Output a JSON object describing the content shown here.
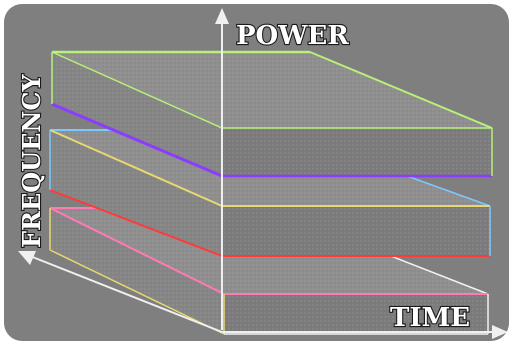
{
  "axes": {
    "power_label": "POWER",
    "frequency_label": "FREQUENCY",
    "time_label": "TIME"
  },
  "colors": {
    "background": "#7f7f7f",
    "panel_fill": "#8a8a8a",
    "slab_top_fill": "#8f8f8f",
    "slab_front_fill": "#858585",
    "slab_side_fill": "#7b7b7b",
    "edge_green": "#b8f078",
    "edge_purple": "#8a3cff",
    "edge_pink": "#ff7ab4",
    "edge_cyan": "#7cc8ff",
    "edge_yellow": "#e8d870",
    "edge_red": "#ff3a3a",
    "edge_white": "#f2f2f2",
    "axis_color": "#f0f0f0"
  },
  "layers": [
    {
      "name": "top-slab"
    },
    {
      "name": "middle-slab"
    },
    {
      "name": "bottom-slab"
    }
  ]
}
